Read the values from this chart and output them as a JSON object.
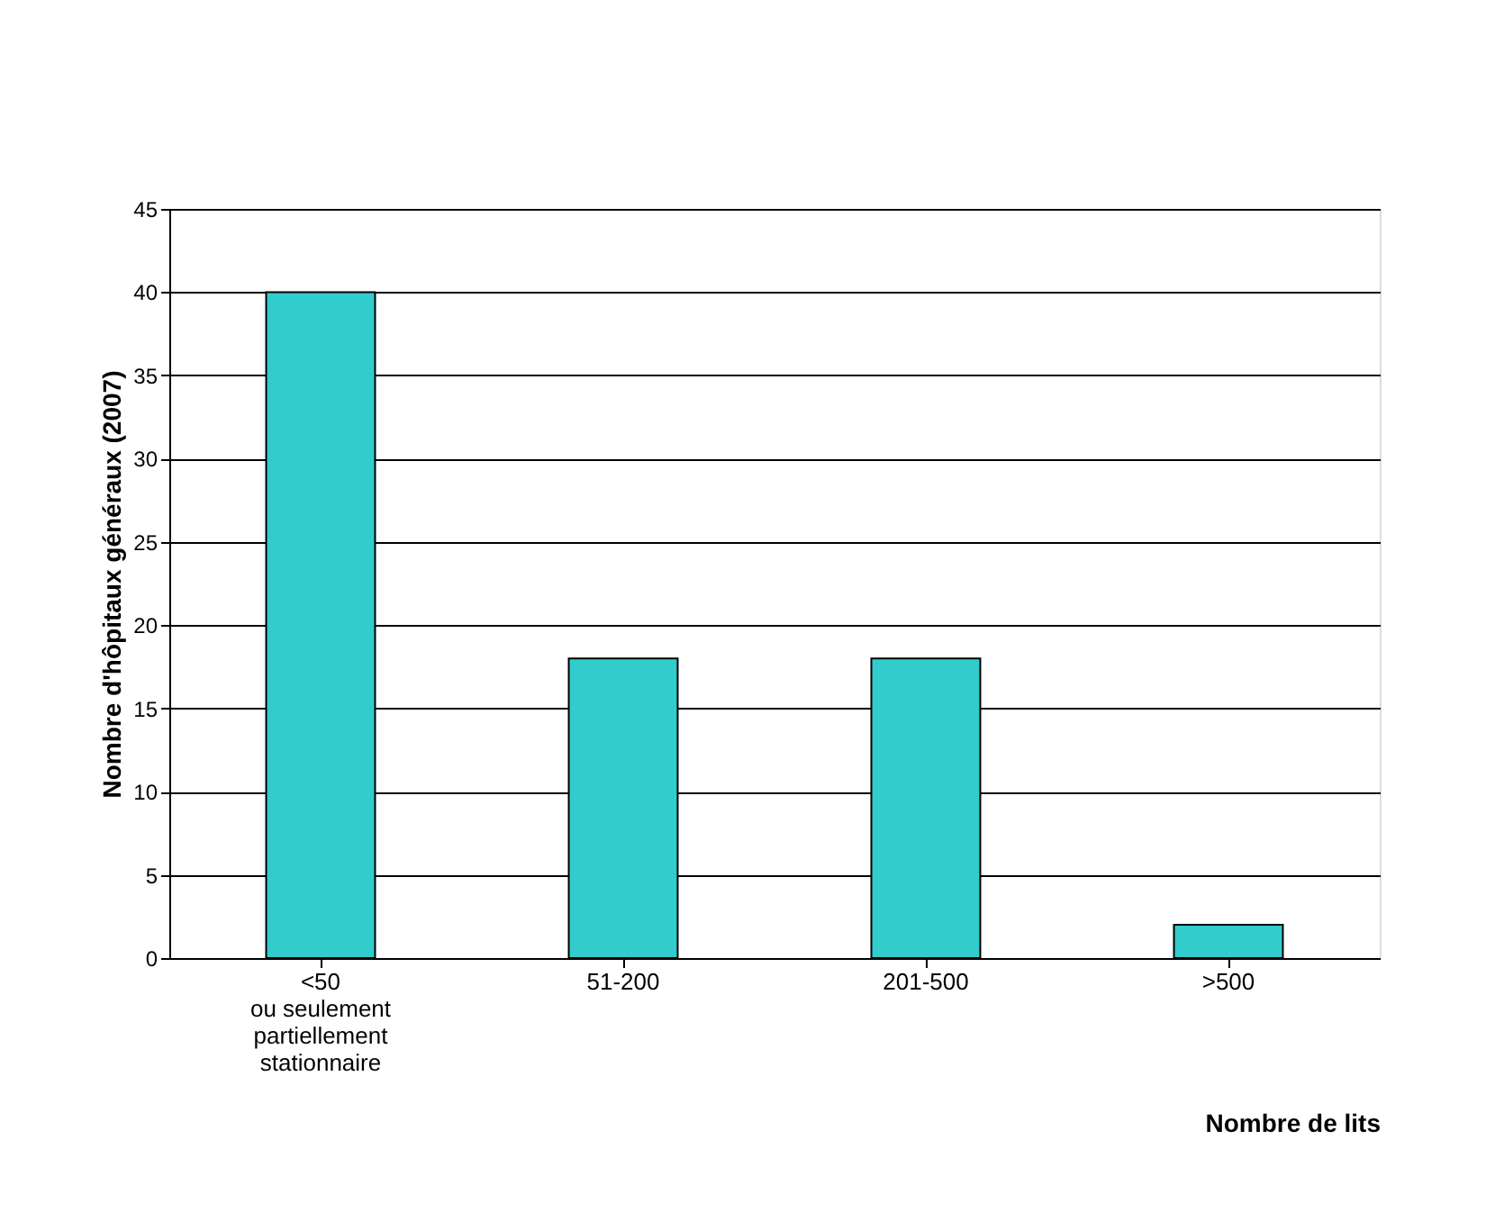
{
  "chart_data": {
    "type": "bar",
    "categories": [
      "<50\nou seulement\npartiellement\nstationnaire",
      "51-200",
      "201-500",
      ">500"
    ],
    "values": [
      40,
      18,
      18,
      2
    ],
    "color": "#33cccc",
    "xlabel": "Nombre de lits",
    "ylabel": "Nombre d'hôpitaux généraux (2007)",
    "ylim": [
      0,
      45
    ],
    "yticks": [
      0,
      5,
      10,
      15,
      20,
      25,
      30,
      35,
      40,
      45
    ],
    "grid": "y"
  }
}
